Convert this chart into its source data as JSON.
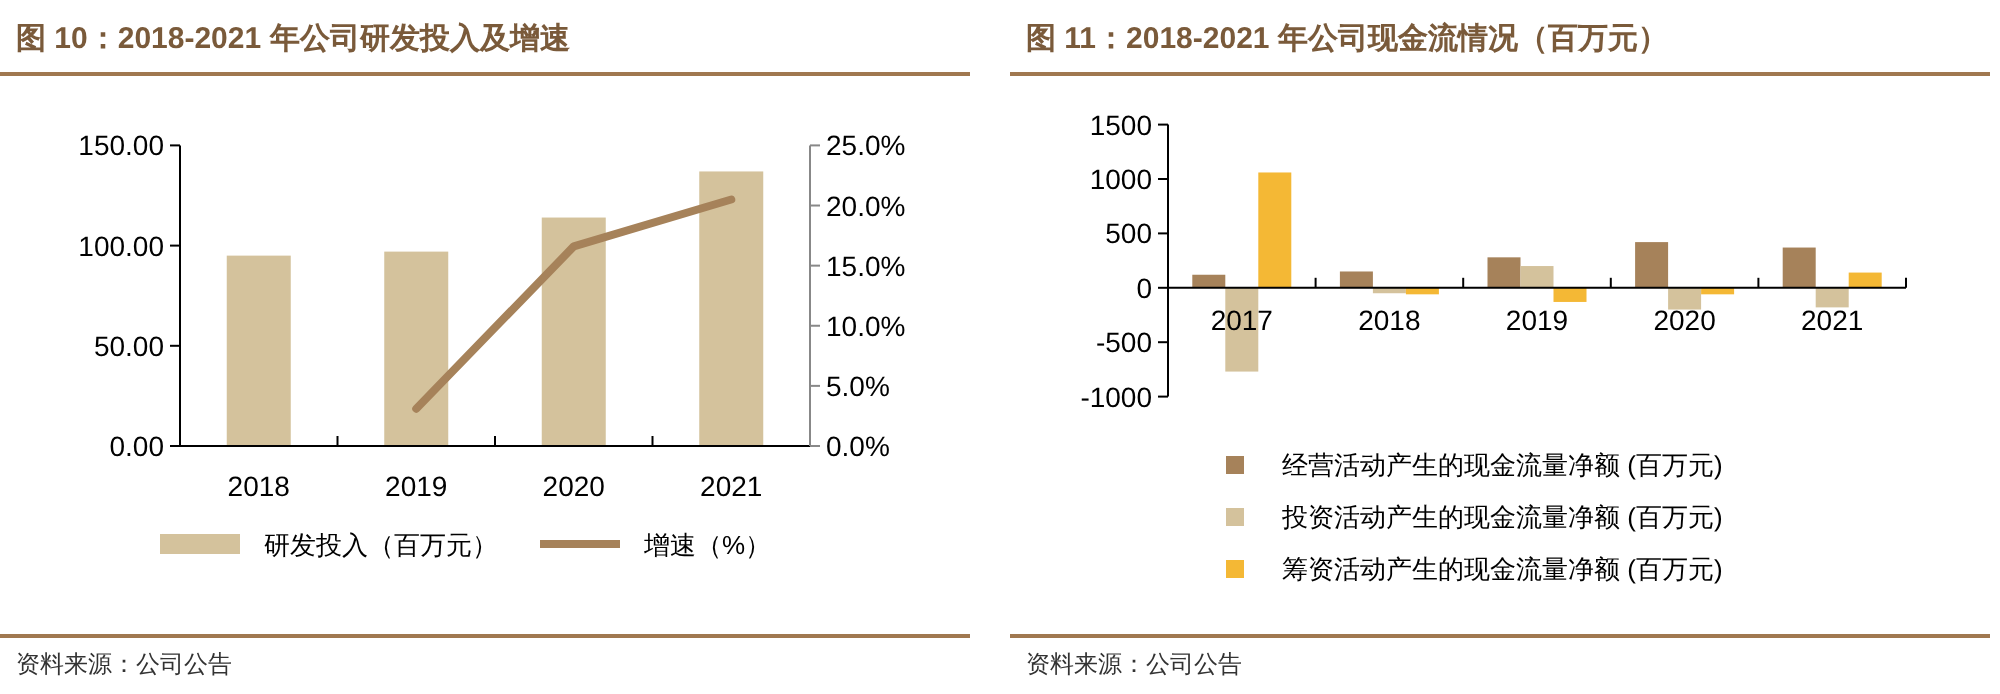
{
  "chart_data": [
    {
      "type": "bar",
      "title": "图 10：2018-2021 年公司研发投入及增速",
      "categories": [
        "2018",
        "2019",
        "2020",
        "2021"
      ],
      "series": [
        {
          "name": "研发投入（百万元）",
          "type": "bar",
          "color": "#d4c29c",
          "values": [
            95,
            97,
            114,
            137
          ]
        },
        {
          "name": "增速（%）",
          "type": "line",
          "axis": "y2",
          "color": "#a6825a",
          "values": [
            null,
            3.1,
            16.6,
            20.5
          ]
        }
      ],
      "ylim": [
        0,
        150
      ],
      "yticks": [
        {
          "value": 0,
          "label": "0.00"
        },
        {
          "value": 50,
          "label": "50.00"
        },
        {
          "value": 100,
          "label": "100.00"
        },
        {
          "value": 150,
          "label": "150.00"
        }
      ],
      "y2lim": [
        0,
        25
      ],
      "y2ticks": [
        {
          "value": 0,
          "label": "0.0%"
        },
        {
          "value": 5,
          "label": "5.0%"
        },
        {
          "value": 10,
          "label": "10.0%"
        },
        {
          "value": 15,
          "label": "15.0%"
        },
        {
          "value": 20,
          "label": "20.0%"
        },
        {
          "value": 25,
          "label": "25.0%"
        }
      ],
      "legend": "bottom",
      "annotations": [
        "资料来源：公司公告"
      ]
    },
    {
      "type": "bar",
      "title": "图 11：2018-2021 年公司现金流情况（百万元）",
      "categories": [
        "2017",
        "2018",
        "2019",
        "2020",
        "2021"
      ],
      "series": [
        {
          "name": "经营活动产生的现金流量净额 (百万元)",
          "color": "#a6825a",
          "values": [
            120,
            150,
            280,
            420,
            370
          ]
        },
        {
          "name": "投资活动产生的现金流量净额 (百万元)",
          "color": "#d4c29c",
          "values": [
            -770,
            -50,
            200,
            -200,
            -180
          ]
        },
        {
          "name": "筹资活动产生的现金流量净额 (百万元)",
          "color": "#f4b835",
          "values": [
            1060,
            -60,
            -130,
            -60,
            140
          ]
        }
      ],
      "ylim": [
        -1000,
        1500
      ],
      "yticks": [
        -1000,
        -500,
        0,
        500,
        1000,
        1500
      ],
      "legend": "bottom",
      "annotations": [
        "资料来源：公司公告"
      ]
    }
  ]
}
